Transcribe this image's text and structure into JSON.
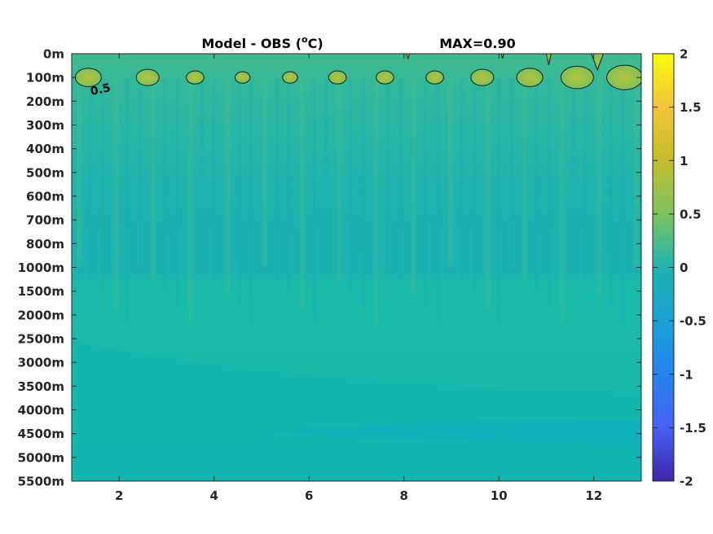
{
  "chart_data": {
    "type": "heatmap",
    "title": "Model - OBS (°C)",
    "title_parts": {
      "prefix": "Model - OBS (",
      "superscript": "o",
      "suffix": "C)"
    },
    "annotation": "MAX=0.90",
    "xlim": [
      1,
      13
    ],
    "xticks": [
      2,
      4,
      6,
      8,
      10,
      12
    ],
    "depth_levels": [
      "0m",
      "100m",
      "200m",
      "300m",
      "400m",
      "500m",
      "600m",
      "700m",
      "800m",
      "1000m",
      "1500m",
      "2000m",
      "2500m",
      "3000m",
      "3500m",
      "4000m",
      "4500m",
      "5000m",
      "5500m"
    ],
    "colorbar": {
      "range": [
        -2,
        2
      ],
      "ticks": [
        2,
        1.5,
        1,
        0.5,
        0,
        -0.5,
        -1,
        -1.5,
        -2
      ],
      "colormap": "parula"
    },
    "contour": {
      "level": 0.5,
      "label": "0.5"
    },
    "anomaly_pockets_at_100m": [
      {
        "x": 1.35,
        "value": 0.75
      },
      {
        "x": 2.6,
        "value": 0.7
      },
      {
        "x": 3.6,
        "value": 0.62
      },
      {
        "x": 4.6,
        "value": 0.58
      },
      {
        "x": 5.6,
        "value": 0.58
      },
      {
        "x": 6.6,
        "value": 0.62
      },
      {
        "x": 7.6,
        "value": 0.62
      },
      {
        "x": 8.65,
        "value": 0.62
      },
      {
        "x": 9.65,
        "value": 0.7
      },
      {
        "x": 10.65,
        "value": 0.75
      },
      {
        "x": 11.65,
        "value": 0.85
      },
      {
        "x": 12.65,
        "value": 0.9
      }
    ],
    "background_colors": {
      "upper_ocean": "#1fb6ad",
      "deep_ocean": "#17bba9",
      "bottom_band": "#10b4b6",
      "warm_pocket": "#96c454",
      "warm_pocket_core": "#b6c13a"
    }
  }
}
